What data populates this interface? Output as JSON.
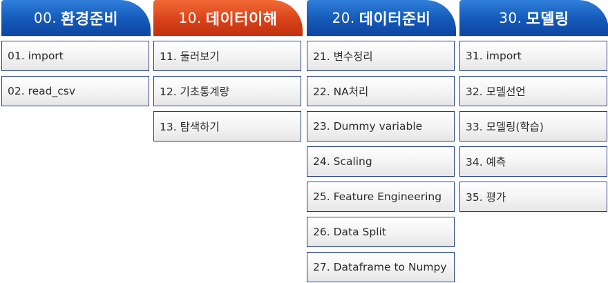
{
  "columns": [
    {
      "header_num": "00.",
      "header_label": "환경준비",
      "color": "#1559b8",
      "items": [
        "01. import",
        "02. read_csv"
      ]
    },
    {
      "header_num": "10.",
      "header_label": "데이터이해",
      "color": "#d8431a",
      "items": [
        "11. 둘러보기",
        "12. 기초통계량",
        "13. 탐색하기"
      ]
    },
    {
      "header_num": "20.",
      "header_label": "데이터준비",
      "color": "#1559b8",
      "items": [
        "21. 변수정리",
        "22. NA처리",
        "23. Dummy variable",
        "24. Scaling",
        "25. Feature Engineering",
        "26. Data Split",
        "27. Dataframe to Numpy"
      ]
    },
    {
      "header_num": "30.",
      "header_label": "모델링",
      "color": "#1559b8",
      "items": [
        "31. import",
        "32. 모델선언",
        "33. 모델링(학습)",
        "34. 예측",
        "35. 평가"
      ]
    }
  ]
}
